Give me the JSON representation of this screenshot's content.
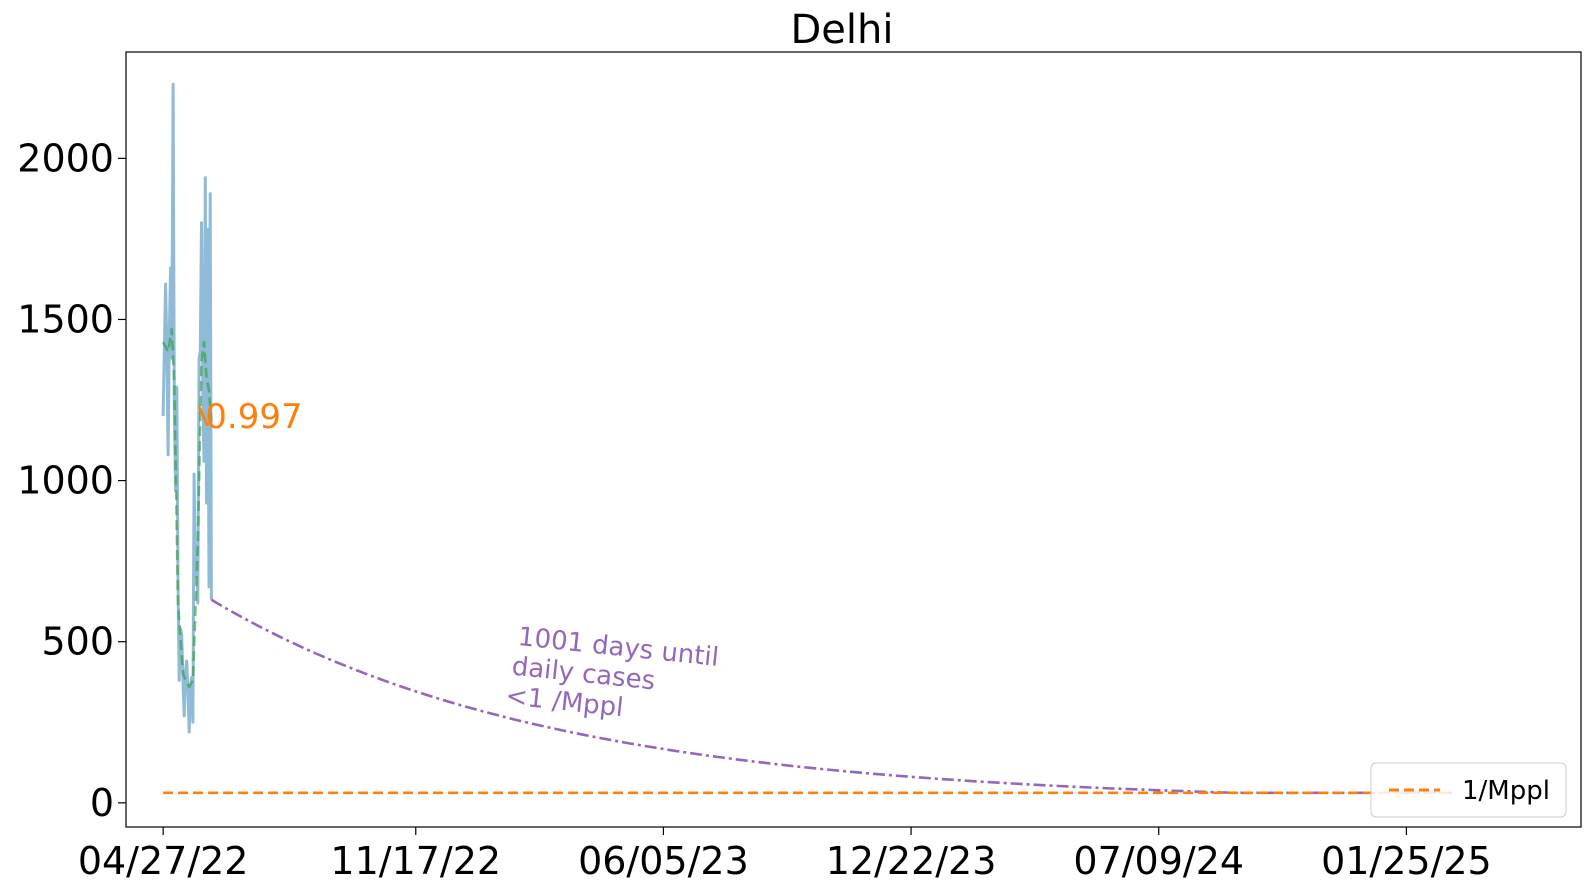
{
  "chart_data": {
    "type": "line",
    "title": "Delhi",
    "xlabel": "",
    "ylabel": "",
    "x_axis": {
      "kind": "date",
      "range": [
        "2022-03-28",
        "2025-06-15"
      ],
      "ticks": [
        "2022-04-27",
        "2022-11-17",
        "2023-06-05",
        "2023-12-22",
        "2024-07-09",
        "2025-01-25"
      ],
      "tick_labels": [
        "04/27/22",
        "11/17/22",
        "06/05/23",
        "12/22/23",
        "07/09/24",
        "01/25/25"
      ]
    },
    "y_axis": {
      "range": [
        -75,
        2330
      ],
      "ticks": [
        0,
        500,
        1000,
        1500,
        2000
      ],
      "tick_labels": [
        "0",
        "500",
        "1000",
        "1500",
        "2000"
      ]
    },
    "grid": false,
    "legend": {
      "position": "bottom-right",
      "entries": [
        "1/Mppl"
      ]
    },
    "series": [
      {
        "style": "solid",
        "color": "#1f77b4",
        "opacity": 0.5,
        "points": [
          [
            "2022-04-27",
            1200
          ],
          [
            "2022-04-29",
            1610
          ],
          [
            "2022-04-30",
            1400
          ],
          [
            "2022-05-01",
            1080
          ],
          [
            "2022-05-02",
            1450
          ],
          [
            "2022-05-03",
            1660
          ],
          [
            "2022-05-04",
            1380
          ],
          [
            "2022-05-05",
            2230
          ],
          [
            "2022-05-06",
            1250
          ],
          [
            "2022-05-07",
            970
          ],
          [
            "2022-05-08",
            1290
          ],
          [
            "2022-05-09",
            690
          ],
          [
            "2022-05-10",
            380
          ],
          [
            "2022-05-11",
            540
          ],
          [
            "2022-05-12",
            520
          ],
          [
            "2022-05-13",
            380
          ],
          [
            "2022-05-14",
            270
          ],
          [
            "2022-05-15",
            400
          ],
          [
            "2022-05-16",
            440
          ],
          [
            "2022-05-17",
            350
          ],
          [
            "2022-05-18",
            220
          ],
          [
            "2022-05-19",
            360
          ],
          [
            "2022-05-20",
            390
          ],
          [
            "2022-05-21",
            250
          ],
          [
            "2022-05-22",
            1020
          ],
          [
            "2022-05-23",
            700
          ],
          [
            "2022-05-24",
            800
          ],
          [
            "2022-05-25",
            620
          ],
          [
            "2022-05-26",
            1380
          ],
          [
            "2022-05-27",
            1400
          ],
          [
            "2022-05-28",
            1800
          ],
          [
            "2022-05-29",
            1300
          ],
          [
            "2022-05-30",
            1060
          ],
          [
            "2022-05-31",
            1940
          ],
          [
            "2022-06-01",
            930
          ],
          [
            "2022-06-02",
            1780
          ],
          [
            "2022-06-03",
            670
          ],
          [
            "2022-06-04",
            1890
          ],
          [
            "2022-06-05",
            630
          ]
        ]
      },
      {
        "style": "dashed",
        "color": "#2ca02c",
        "opacity": 0.6,
        "points": [
          [
            "2022-04-27",
            1430
          ],
          [
            "2022-05-01",
            1400
          ],
          [
            "2022-05-04",
            1470
          ],
          [
            "2022-05-06",
            1300
          ],
          [
            "2022-05-09",
            620
          ],
          [
            "2022-05-13",
            400
          ],
          [
            "2022-05-18",
            360
          ],
          [
            "2022-05-21",
            380
          ],
          [
            "2022-05-25",
            800
          ],
          [
            "2022-05-28",
            1370
          ],
          [
            "2022-05-30",
            1430
          ],
          [
            "2022-06-01",
            1320
          ],
          [
            "2022-06-03",
            1280
          ],
          [
            "2022-06-05",
            1180
          ]
        ]
      },
      {
        "style": "solid",
        "color": "#ff7f0e",
        "opacity": 1,
        "points": [
          [
            "2022-05-26",
            1230
          ],
          [
            "2022-06-02",
            1170
          ]
        ]
      },
      {
        "style": "dashdot",
        "color": "#9467bd",
        "opacity": 1,
        "decay_days": 275,
        "points": [
          [
            "2022-06-05",
            630
          ],
          [
            "2025-03-03",
            31
          ]
        ]
      },
      {
        "name": "1/Mppl",
        "style": "dashed",
        "color": "#ff7f0e",
        "opacity": 1,
        "points": [
          [
            "2022-04-27",
            31
          ],
          [
            "2025-03-03",
            31
          ]
        ]
      }
    ],
    "annotations": [
      {
        "text": "0.997",
        "x": "2022-05-31",
        "y": 1200,
        "color": "#ff7f0e"
      },
      {
        "lines": [
          "1001 days until",
          "daily cases",
          "<1 /Mppl"
        ],
        "x": "2023-02-07",
        "y": 490,
        "rotation": 6,
        "color": "#9467bd"
      }
    ]
  }
}
